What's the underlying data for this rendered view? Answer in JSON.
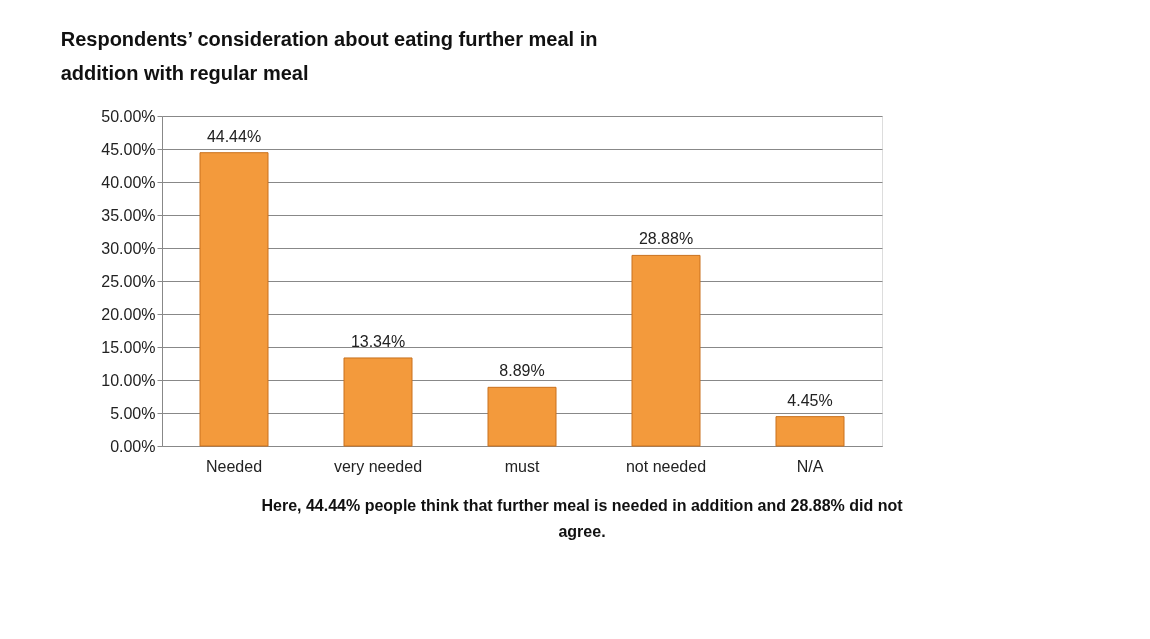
{
  "chart_data": {
    "type": "bar",
    "title": "Respondents’ consideration about eating further meal in addition with regular meal",
    "categories": [
      "Needed",
      "very needed",
      "must",
      "not needed",
      "N/A"
    ],
    "values": [
      44.44,
      13.34,
      8.89,
      28.88,
      4.45
    ],
    "value_labels": [
      "44.44%",
      "13.34%",
      "8.89%",
      "28.88%",
      "4.45%"
    ],
    "color": "#f39a3c",
    "ylim": [
      0,
      50
    ],
    "yticks": [
      {
        "value": 0,
        "label": "0.00%"
      },
      {
        "value": 5,
        "label": "5.00%"
      },
      {
        "value": 10,
        "label": "10.00%"
      },
      {
        "value": 15,
        "label": "15.00%"
      },
      {
        "value": 20,
        "label": "20.00%"
      },
      {
        "value": 25,
        "label": "25.00%"
      },
      {
        "value": 30,
        "label": "30.00%"
      },
      {
        "value": 35,
        "label": "35.00%"
      },
      {
        "value": 40,
        "label": "40.00%"
      },
      {
        "value": 45,
        "label": "45.00%"
      },
      {
        "value": 50,
        "label": "50.00%"
      }
    ],
    "grid": "y",
    "annotations": [
      "Here, 44.44% people think that further meal is needed in addition and 28.88% did not agree."
    ]
  }
}
